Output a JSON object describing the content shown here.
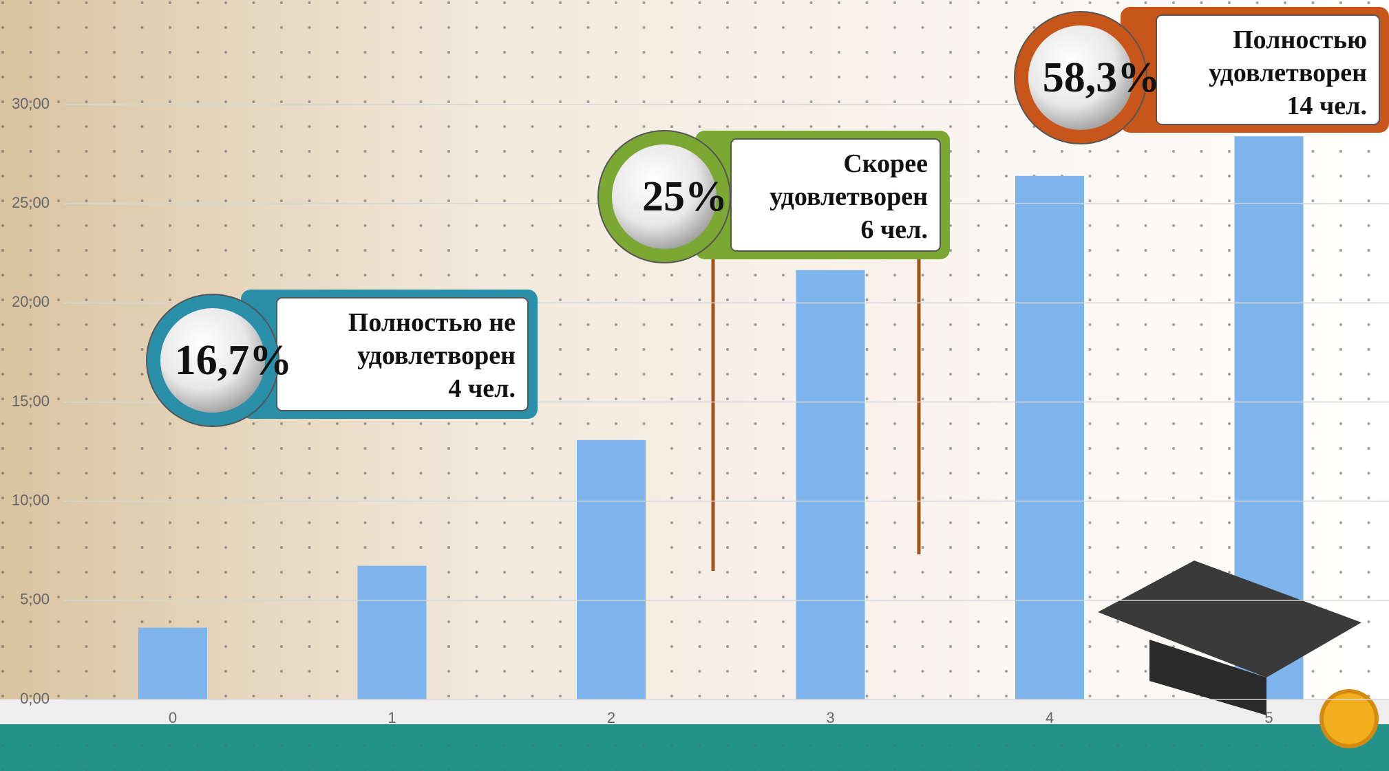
{
  "chart_data": {
    "type": "bar",
    "categories": [
      "0",
      "1",
      "2",
      "3",
      "4",
      "5"
    ],
    "values": [
      3.62,
      6.74,
      13.08,
      21.65,
      26.4,
      28.4
    ],
    "color": "#7eb4ec",
    "ylim": [
      0,
      30
    ],
    "yticks": [
      {
        "value": 0,
        "label": "0,00"
      },
      {
        "value": 5,
        "label": "5,00"
      },
      {
        "value": 10,
        "label": "10,00"
      },
      {
        "value": 15,
        "label": "15,00"
      },
      {
        "value": 20,
        "label": "20,00"
      },
      {
        "value": 25,
        "label": "25,00"
      },
      {
        "value": 30,
        "label": "30,00"
      }
    ],
    "grid": true,
    "annotations": [
      {
        "label": "16,7%",
        "lines": [
          "Полностью не",
          "удовлетворен",
          "4 чел."
        ],
        "color": "#2a8fa8"
      },
      {
        "label": "25%",
        "lines": [
          "Скорее",
          "удовлетворен",
          "6 чел."
        ],
        "color": "#7aa833"
      },
      {
        "label": "58,3%",
        "lines": [
          "Полностью",
          "удовлетворен",
          "14 чел."
        ],
        "color": "#c8561a"
      }
    ]
  }
}
